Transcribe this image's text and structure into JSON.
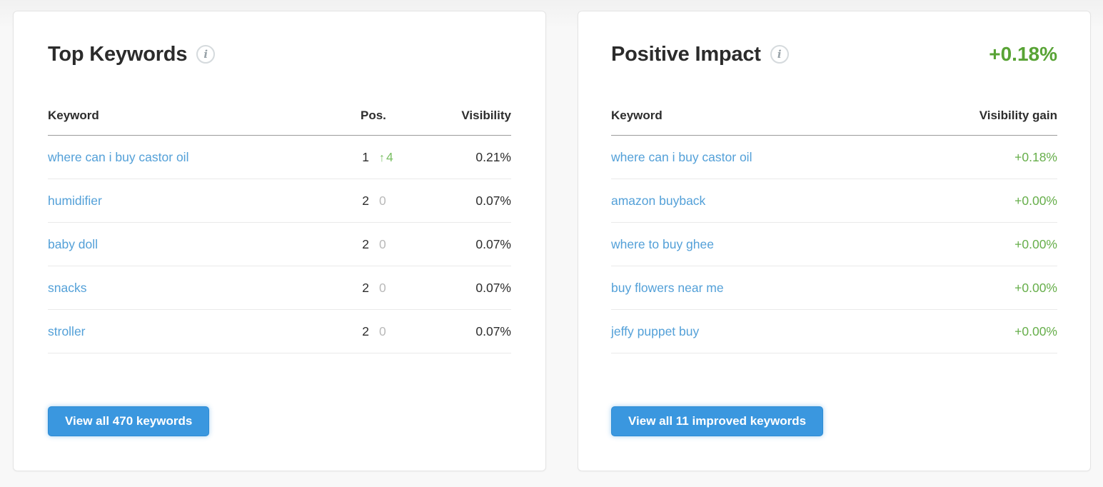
{
  "colors": {
    "link_blue": "#53a0d8",
    "button_blue": "#3a97df",
    "positive_green": "#58a335",
    "gain_green": "#66ae4a",
    "change_up_green": "#7abf63",
    "neutral_gray": "#b9b9b9"
  },
  "top_keywords": {
    "title": "Top Keywords",
    "info_icon": "i",
    "columns": {
      "keyword": "Keyword",
      "position": "Pos.",
      "visibility": "Visibility"
    },
    "rows": [
      {
        "keyword": "where can i buy castor oil",
        "position": "1",
        "change_arrow": "↑",
        "change": "4",
        "visibility": "0.21%"
      },
      {
        "keyword": "humidifier",
        "position": "2",
        "change": "0",
        "visibility": "0.07%"
      },
      {
        "keyword": "baby doll",
        "position": "2",
        "change": "0",
        "visibility": "0.07%"
      },
      {
        "keyword": "snacks",
        "position": "2",
        "change": "0",
        "visibility": "0.07%"
      },
      {
        "keyword": "stroller",
        "position": "2",
        "change": "0",
        "visibility": "0.07%"
      }
    ],
    "view_all_label": "View all 470 keywords"
  },
  "positive_impact": {
    "title": "Positive Impact",
    "info_icon": "i",
    "total_gain": "+0.18%",
    "columns": {
      "keyword": "Keyword",
      "visibility_gain": "Visibility gain"
    },
    "rows": [
      {
        "keyword": "where can i buy castor oil",
        "gain": "+0.18%"
      },
      {
        "keyword": "amazon buyback",
        "gain": "+0.00%"
      },
      {
        "keyword": "where to buy ghee",
        "gain": "+0.00%"
      },
      {
        "keyword": "buy flowers near me",
        "gain": "+0.00%"
      },
      {
        "keyword": "jeffy puppet buy",
        "gain": "+0.00%"
      }
    ],
    "view_all_label": "View all 11 improved keywords"
  }
}
